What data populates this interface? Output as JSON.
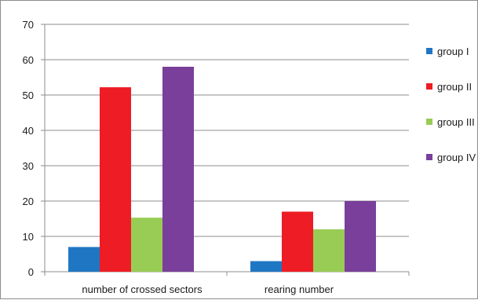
{
  "chart_data": {
    "type": "bar",
    "title": "",
    "xlabel": "",
    "ylabel": "",
    "categories": [
      "number of crossed sectors",
      "rearing number"
    ],
    "series": [
      {
        "name": "group I",
        "color": "#1f77c4",
        "values": [
          7,
          3
        ]
      },
      {
        "name": "group II",
        "color": "#ee1c24",
        "values": [
          52.2,
          17
        ]
      },
      {
        "name": "group III",
        "color": "#99cc55",
        "values": [
          15.3,
          12
        ]
      },
      {
        "name": "group IV",
        "color": "#7a3f9a",
        "values": [
          58,
          20
        ]
      }
    ],
    "ylim": [
      0,
      70
    ],
    "yticks": [
      0,
      10,
      20,
      30,
      40,
      50,
      60,
      70
    ],
    "grid": true,
    "legend_position": "right"
  }
}
